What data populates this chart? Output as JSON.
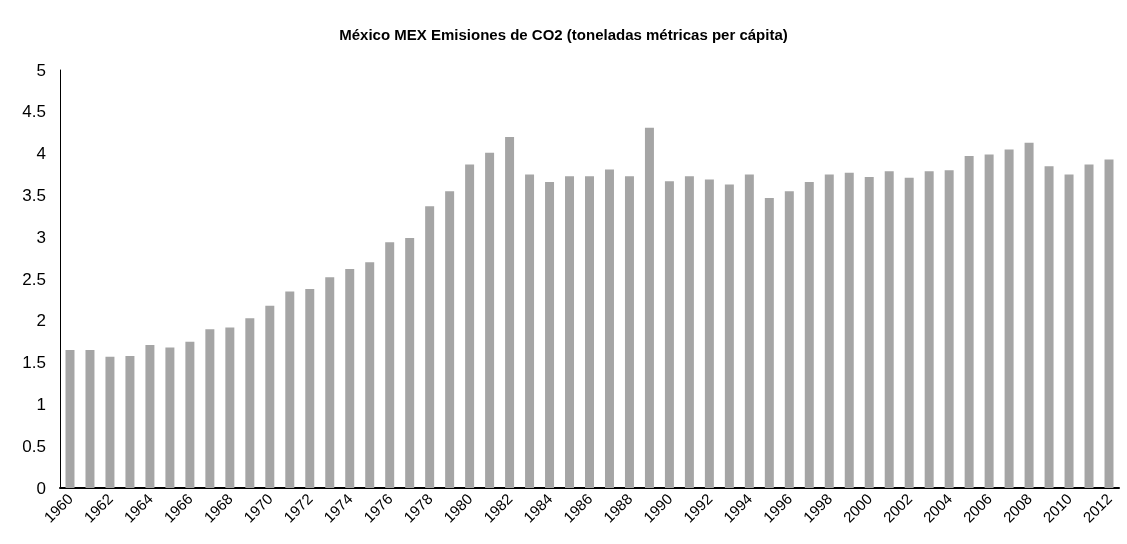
{
  "chart_data": {
    "type": "bar",
    "title": "México MEX Emisiones de CO2 (toneladas métricas per cápita)",
    "categories": [
      "1960",
      null,
      "1962",
      null,
      "1964",
      null,
      "1966",
      null,
      "1968",
      null,
      "1970",
      null,
      "1972",
      null,
      "1974",
      null,
      "1976",
      null,
      "1978",
      null,
      "1980",
      null,
      "1982",
      null,
      "1984",
      null,
      "1986",
      null,
      "1988",
      null,
      "1990",
      null,
      "1992",
      null,
      "1994",
      null,
      "1996",
      null,
      "1998",
      null,
      "2000",
      null,
      "2002",
      null,
      "2004",
      null,
      "2006",
      null,
      "2008",
      null,
      "2010",
      null,
      "2012"
    ],
    "values": [
      1.65,
      1.65,
      1.57,
      1.58,
      1.71,
      1.68,
      1.75,
      1.9,
      1.92,
      2.03,
      2.18,
      2.35,
      2.38,
      2.52,
      2.62,
      2.7,
      2.94,
      2.99,
      3.37,
      3.55,
      3.87,
      4.01,
      4.2,
      3.75,
      3.66,
      3.73,
      3.73,
      3.81,
      3.73,
      4.31,
      3.67,
      3.73,
      3.69,
      3.63,
      3.75,
      3.47,
      3.55,
      3.66,
      3.75,
      3.77,
      3.72,
      3.79,
      3.71,
      3.79,
      3.8,
      3.97,
      3.99,
      4.05,
      4.13,
      3.85,
      3.75,
      3.87,
      3.93
    ],
    "color": "#a5a5a5",
    "ylim": [
      0,
      5
    ],
    "yticks": [
      0,
      0.5,
      1,
      1.5,
      2,
      2.5,
      3,
      3.5,
      4,
      4.5,
      5
    ],
    "grid": false
  }
}
